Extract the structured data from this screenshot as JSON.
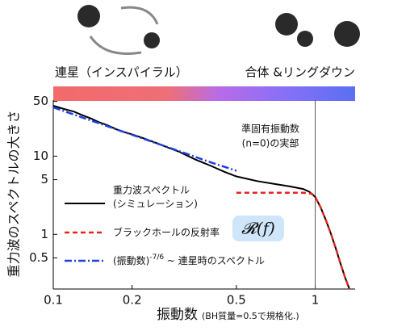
{
  "chart_data": {
    "type": "line",
    "phase_labels": [
      "連星（インスパイラル）",
      "合体 &リングダウン"
    ],
    "ylabel": "重力波のスペクトルの大きさ",
    "xlabel": "振動数",
    "xlabel_note": "(BH質量=0.5で規格化.)",
    "annotation": [
      "準固有振動数",
      "(n=0)の実部"
    ],
    "badge": "𝓡(f)",
    "vline": 1,
    "log_x": true,
    "log_y": true,
    "xlim": [
      0.1,
      1.42
    ],
    "ylim": [
      0.2,
      52
    ],
    "xticks": [
      0.1,
      0.2,
      0.5,
      1
    ],
    "yticks": [
      0.5,
      1,
      5,
      10,
      50
    ],
    "series": [
      {
        "name": "重力波スペクトル\n(シミュレーション)",
        "color": "#000000",
        "style": "solid",
        "x": [
          0.1,
          0.11,
          0.12,
          0.13,
          0.14,
          0.15,
          0.16,
          0.18,
          0.2,
          0.22,
          0.25,
          0.28,
          0.3,
          0.35,
          0.4,
          0.45,
          0.5,
          0.6,
          0.7,
          0.8,
          0.9,
          0.95,
          1.0,
          1.05,
          1.1,
          1.15,
          1.2,
          1.25,
          1.3,
          1.35
        ],
        "values": [
          44,
          40,
          37,
          33,
          30,
          27,
          25,
          21,
          19,
          17,
          14.5,
          12.5,
          11.5,
          9,
          7.5,
          6.3,
          5.5,
          4.8,
          4.4,
          4.1,
          3.8,
          3.5,
          3.0,
          2.2,
          1.5,
          1.0,
          0.65,
          0.42,
          0.28,
          0.2
        ]
      },
      {
        "name": "ブラックホールの反射率",
        "color": "#e8231c",
        "style": "dashed",
        "x": [
          0.5,
          0.7,
          0.9,
          0.97,
          1.0,
          1.05,
          1.1,
          1.15,
          1.2,
          1.25,
          1.3,
          1.35
        ],
        "values": [
          3.4,
          3.4,
          3.4,
          3.3,
          3.0,
          2.2,
          1.5,
          1.0,
          0.65,
          0.42,
          0.28,
          0.2
        ]
      },
      {
        "name": "(振動数)-7/6 ~ 連星時のスペクトル",
        "color": "#1f3fe0",
        "style": "dashdot",
        "x": [
          0.1,
          0.2,
          0.3,
          0.4,
          0.5
        ],
        "values": [
          42,
          18.7,
          11.7,
          8.3,
          6.5
        ]
      }
    ]
  }
}
